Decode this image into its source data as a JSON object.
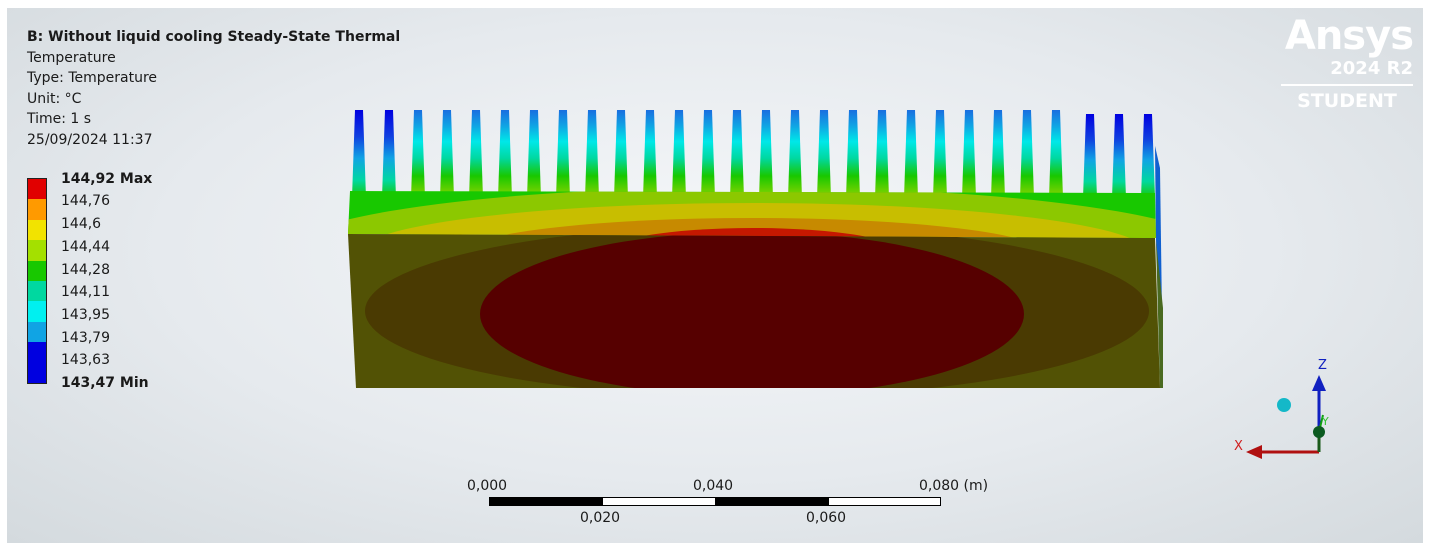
{
  "header": {
    "title": "B: Without liquid cooling Steady-State Thermal",
    "result_name": "Temperature",
    "type": "Type: Temperature",
    "unit": "Unit: °C",
    "time": "Time: 1 s",
    "timestamp": "25/09/2024 11:37"
  },
  "legend": {
    "labels": [
      "144,92 Max",
      "144,76",
      "144,6",
      "144,44",
      "144,28",
      "144,11",
      "143,95",
      "143,79",
      "143,63",
      "143,47 Min"
    ],
    "colors": [
      "#e10000",
      "#ff9a00",
      "#f2e300",
      "#a4e000",
      "#18c800",
      "#00d8a0",
      "#00f0f0",
      "#10a4e4",
      "#0000e0"
    ]
  },
  "logo": {
    "brand": "Ansys",
    "version": "2024 R2",
    "edition": "STUDENT"
  },
  "scale_bar": {
    "top_labels": [
      "0,000",
      "0,040",
      "0,080 (m)"
    ],
    "bottom_labels": [
      "0,020",
      "0,060"
    ]
  },
  "triad": {
    "z_label": "Z",
    "x_label": "X",
    "y_label": "Y"
  },
  "colors": {
    "background_center": "#f5f7f9",
    "background_edge": "#d4dade",
    "hot_core": "#560000",
    "base_face": "#4a3d05",
    "base_outer": "#525205"
  }
}
